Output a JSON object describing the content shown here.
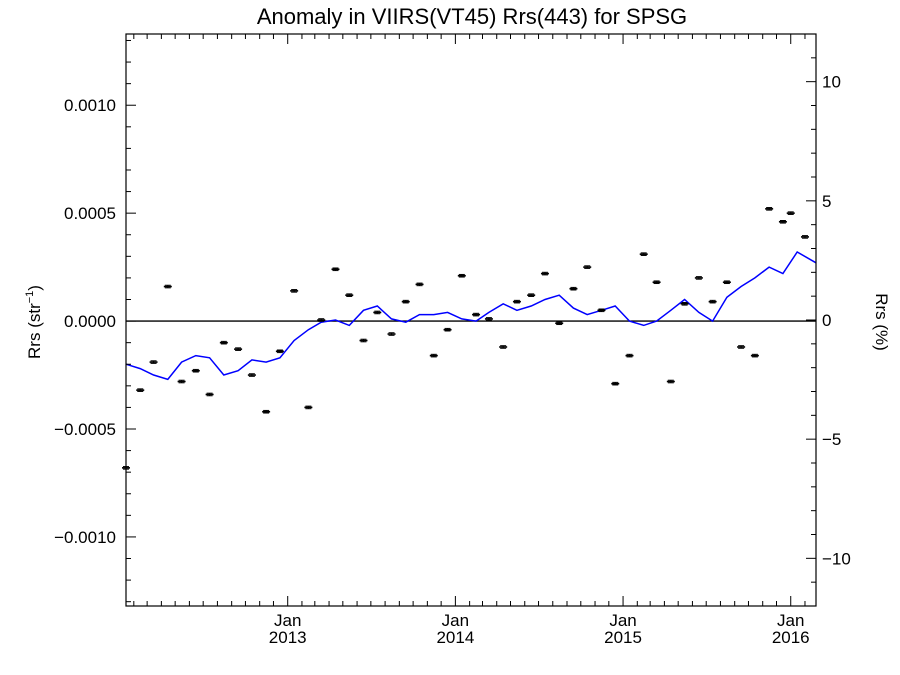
{
  "chart_data": {
    "type": "scatter",
    "title": "Anomaly in VIIRS(VT45) Rrs(443) for SPSG",
    "ylabel": "Rrs (str",
    "ylabel_sup": "−1",
    "ylabel_close": ")",
    "y2label": "Rrs (%)",
    "ylim": [
      -0.00132,
      0.00133
    ],
    "y2lim": [
      -12.0,
      12.0
    ],
    "yticks": [
      {
        "value": -0.001,
        "label": "−0.0010"
      },
      {
        "value": -0.0005,
        "label": "−0.0005"
      },
      {
        "value": 0.0,
        "label": "0.0000"
      },
      {
        "value": 0.0005,
        "label": "0.0005"
      },
      {
        "value": 0.001,
        "label": "0.0010"
      }
    ],
    "y2ticks": [
      {
        "value": -10,
        "label": "−10"
      },
      {
        "value": -5,
        "label": "−5"
      },
      {
        "value": 0,
        "label": "0"
      },
      {
        "value": 5,
        "label": "5"
      },
      {
        "value": 10,
        "label": "10"
      }
    ],
    "xlim": [
      "2012-01-15",
      "2016-02-25"
    ],
    "xticks": [
      {
        "date": "2013-01-01",
        "month": "Jan",
        "year": "2013"
      },
      {
        "date": "2014-01-01",
        "month": "Jan",
        "year": "2014"
      },
      {
        "date": "2015-01-01",
        "month": "Jan",
        "year": "2015"
      },
      {
        "date": "2016-01-01",
        "month": "Jan",
        "year": "2016"
      }
    ],
    "zero_line": true,
    "grid": false,
    "colors": {
      "points": "#000000",
      "line": "#0000ff",
      "zero_line": "#000000"
    },
    "series": [
      {
        "kind": "monthly anomaly (points with error bars)",
        "points": [
          {
            "x": "2012-01-15",
            "y": -0.00068
          },
          {
            "x": "2012-02-15",
            "y": -0.00032
          },
          {
            "x": "2012-03-15",
            "y": -0.00019
          },
          {
            "x": "2012-04-15",
            "y": 0.00016
          },
          {
            "x": "2012-05-15",
            "y": -0.00028
          },
          {
            "x": "2012-06-15",
            "y": -0.00023
          },
          {
            "x": "2012-07-15",
            "y": -0.00034
          },
          {
            "x": "2012-08-15",
            "y": -0.0001
          },
          {
            "x": "2012-09-15",
            "y": -0.00013
          },
          {
            "x": "2012-10-15",
            "y": -0.00025
          },
          {
            "x": "2012-11-15",
            "y": -0.00042
          },
          {
            "x": "2012-12-15",
            "y": -0.00014
          },
          {
            "x": "2013-01-15",
            "y": 0.00014
          },
          {
            "x": "2013-02-15",
            "y": -0.0004
          },
          {
            "x": "2013-03-15",
            "y": 5e-06
          },
          {
            "x": "2013-04-15",
            "y": 0.00024
          },
          {
            "x": "2013-05-15",
            "y": 0.00012
          },
          {
            "x": "2013-06-15",
            "y": -9e-05
          },
          {
            "x": "2013-07-15",
            "y": 4e-05
          },
          {
            "x": "2013-08-15",
            "y": -6e-05
          },
          {
            "x": "2013-09-15",
            "y": 9e-05
          },
          {
            "x": "2013-10-15",
            "y": 0.00017
          },
          {
            "x": "2013-11-15",
            "y": -0.00016
          },
          {
            "x": "2013-12-15",
            "y": -4e-05
          },
          {
            "x": "2014-01-15",
            "y": 0.00021
          },
          {
            "x": "2014-02-15",
            "y": 3e-05
          },
          {
            "x": "2014-03-15",
            "y": 1e-05
          },
          {
            "x": "2014-04-15",
            "y": -0.00012
          },
          {
            "x": "2014-05-15",
            "y": 9e-05
          },
          {
            "x": "2014-06-15",
            "y": 0.00012
          },
          {
            "x": "2014-07-15",
            "y": 0.00022
          },
          {
            "x": "2014-08-15",
            "y": -1e-05
          },
          {
            "x": "2014-09-15",
            "y": 0.00015
          },
          {
            "x": "2014-10-15",
            "y": 0.00025
          },
          {
            "x": "2014-11-15",
            "y": 5e-05
          },
          {
            "x": "2014-12-15",
            "y": -0.00029
          },
          {
            "x": "2015-01-15",
            "y": -0.00016
          },
          {
            "x": "2015-02-15",
            "y": 0.00031
          },
          {
            "x": "2015-03-15",
            "y": 0.00018
          },
          {
            "x": "2015-04-15",
            "y": -0.00028
          },
          {
            "x": "2015-05-15",
            "y": 8e-05
          },
          {
            "x": "2015-06-15",
            "y": 0.0002
          },
          {
            "x": "2015-07-15",
            "y": 9e-05
          },
          {
            "x": "2015-08-15",
            "y": 0.00018
          },
          {
            "x": "2015-09-15",
            "y": -0.00012
          },
          {
            "x": "2015-10-15",
            "y": -0.00016
          },
          {
            "x": "2015-11-15",
            "y": 0.00052
          },
          {
            "x": "2015-12-15",
            "y": 0.00046
          },
          {
            "x": "2016-01-01",
            "y": 0.0005
          },
          {
            "x": "2016-02-01",
            "y": 0.00039
          }
        ],
        "error": 6e-06
      },
      {
        "kind": "smoothed anomaly (blue line)",
        "points": [
          {
            "x": "2012-01-15",
            "y": -0.0002
          },
          {
            "x": "2012-02-15",
            "y": -0.00022
          },
          {
            "x": "2012-03-15",
            "y": -0.00025
          },
          {
            "x": "2012-04-15",
            "y": -0.00027
          },
          {
            "x": "2012-05-15",
            "y": -0.00019
          },
          {
            "x": "2012-06-15",
            "y": -0.00016
          },
          {
            "x": "2012-07-15",
            "y": -0.00017
          },
          {
            "x": "2012-08-15",
            "y": -0.00025
          },
          {
            "x": "2012-09-15",
            "y": -0.00023
          },
          {
            "x": "2012-10-15",
            "y": -0.00018
          },
          {
            "x": "2012-11-15",
            "y": -0.00019
          },
          {
            "x": "2012-12-15",
            "y": -0.00017
          },
          {
            "x": "2013-01-15",
            "y": -9e-05
          },
          {
            "x": "2013-02-15",
            "y": -4e-05
          },
          {
            "x": "2013-03-15",
            "y": -5e-06
          },
          {
            "x": "2013-04-15",
            "y": 5e-06
          },
          {
            "x": "2013-05-15",
            "y": -2e-05
          },
          {
            "x": "2013-06-15",
            "y": 5e-05
          },
          {
            "x": "2013-07-15",
            "y": 7e-05
          },
          {
            "x": "2013-08-15",
            "y": 1e-05
          },
          {
            "x": "2013-09-15",
            "y": -5e-06
          },
          {
            "x": "2013-10-15",
            "y": 3e-05
          },
          {
            "x": "2013-11-15",
            "y": 3e-05
          },
          {
            "x": "2013-12-15",
            "y": 4e-05
          },
          {
            "x": "2014-01-15",
            "y": 1e-05
          },
          {
            "x": "2014-02-15",
            "y": 0.0
          },
          {
            "x": "2014-03-15",
            "y": 4e-05
          },
          {
            "x": "2014-04-15",
            "y": 8e-05
          },
          {
            "x": "2014-05-15",
            "y": 5e-05
          },
          {
            "x": "2014-06-15",
            "y": 7e-05
          },
          {
            "x": "2014-07-15",
            "y": 0.0001
          },
          {
            "x": "2014-08-15",
            "y": 0.00012
          },
          {
            "x": "2014-09-15",
            "y": 6e-05
          },
          {
            "x": "2014-10-15",
            "y": 3e-05
          },
          {
            "x": "2014-11-15",
            "y": 5e-05
          },
          {
            "x": "2014-12-15",
            "y": 7e-05
          },
          {
            "x": "2015-01-15",
            "y": 0.0
          },
          {
            "x": "2015-02-15",
            "y": -2e-05
          },
          {
            "x": "2015-03-15",
            "y": 0.0
          },
          {
            "x": "2015-04-15",
            "y": 5e-05
          },
          {
            "x": "2015-05-15",
            "y": 0.0001
          },
          {
            "x": "2015-06-15",
            "y": 4e-05
          },
          {
            "x": "2015-07-15",
            "y": 0.0
          },
          {
            "x": "2015-08-15",
            "y": 0.00011
          },
          {
            "x": "2015-09-15",
            "y": 0.00016
          },
          {
            "x": "2015-10-15",
            "y": 0.0002
          },
          {
            "x": "2015-11-15",
            "y": 0.00025
          },
          {
            "x": "2015-12-15",
            "y": 0.00022
          },
          {
            "x": "2016-01-15",
            "y": 0.00032
          },
          {
            "x": "2016-02-25",
            "y": 0.00027
          }
        ]
      }
    ]
  }
}
